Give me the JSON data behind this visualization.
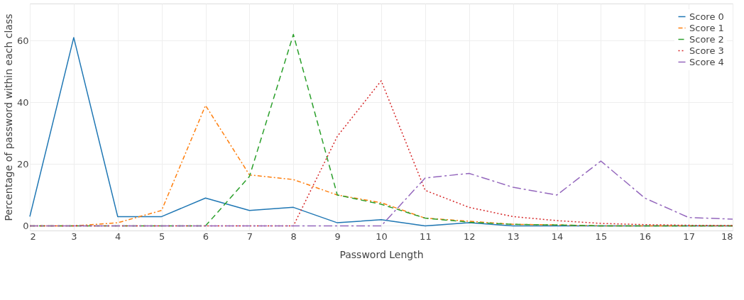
{
  "chart_data": {
    "type": "line",
    "xlabel": "Password Length",
    "ylabel": "Percentage of password within each class",
    "x": [
      2,
      3,
      4,
      5,
      6,
      7,
      8,
      9,
      10,
      11,
      12,
      13,
      14,
      15,
      16,
      17,
      18
    ],
    "xlim": [
      2,
      18
    ],
    "xticks": [
      2,
      3,
      4,
      5,
      6,
      7,
      8,
      9,
      10,
      11,
      12,
      13,
      14,
      15,
      16,
      17,
      18
    ],
    "ylim": [
      -1.5,
      72
    ],
    "yticks": [
      0,
      20,
      40,
      60
    ],
    "grid": true,
    "legend": "top right",
    "marker": "none",
    "series": [
      {
        "name": "Score 0",
        "color": "#1f77b4",
        "line_style": "solid",
        "values": [
          3,
          61,
          3,
          3,
          9,
          5,
          6,
          1,
          2,
          0,
          1,
          0,
          0,
          0,
          0,
          0,
          0
        ]
      },
      {
        "name": "Score 1",
        "color": "#ff7f0e",
        "line_style": "dashdot",
        "values": [
          0,
          0,
          1,
          5,
          39,
          16.5,
          15,
          10,
          7.5,
          2.5,
          1.5,
          0.5,
          0.3,
          0,
          0,
          0,
          0
        ]
      },
      {
        "name": "Score 2",
        "color": "#2ca02c",
        "line_style": "dashed",
        "values": [
          0,
          0,
          0,
          0,
          0,
          16,
          62,
          10,
          7,
          2.5,
          1.2,
          0.5,
          0.3,
          0,
          0,
          0,
          0
        ]
      },
      {
        "name": "Score 3",
        "color": "#d62728",
        "line_style": "dotted",
        "values": [
          0,
          0,
          0,
          0,
          0,
          0,
          0,
          29,
          47,
          11.5,
          6,
          3,
          1.7,
          0.8,
          0.4,
          0.2,
          0.1
        ]
      },
      {
        "name": "Score 4",
        "color": "#9467bd",
        "line_style": "longdashdot",
        "values": [
          0,
          0,
          0,
          0,
          0,
          0,
          0,
          0,
          0,
          15.5,
          17,
          12.5,
          10,
          21,
          9,
          2.7,
          2.2
        ]
      }
    ]
  }
}
